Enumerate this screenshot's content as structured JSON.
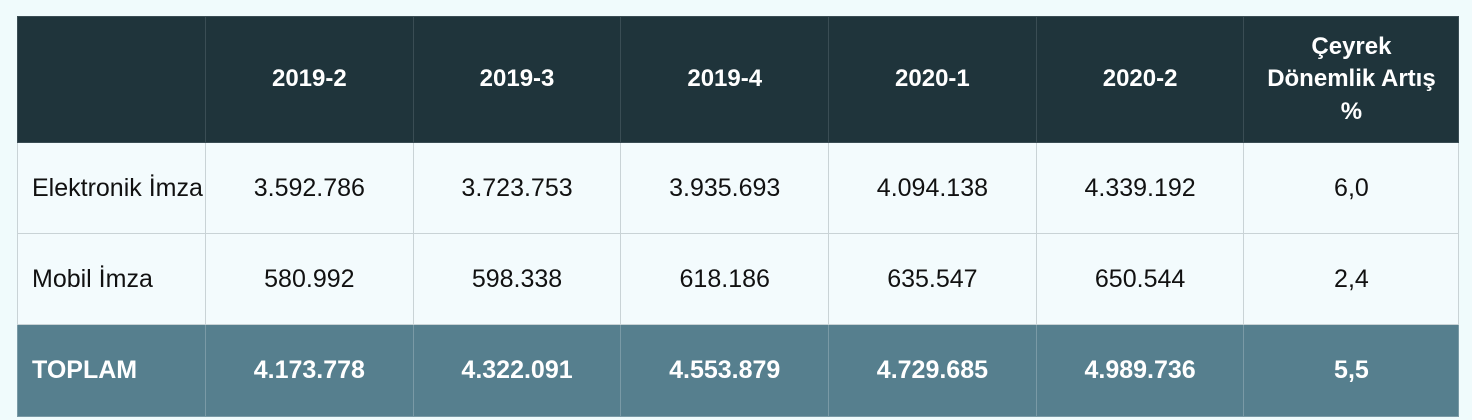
{
  "chart_data": {
    "type": "table",
    "columns": [
      "",
      "2019-2",
      "2019-3",
      "2019-4",
      "2020-1",
      "2020-2",
      "Çeyrek Dönemlik Artış %"
    ],
    "rows": [
      {
        "label": "Elektronik İmza",
        "values": [
          "3.592.786",
          "3.723.753",
          "3.935.693",
          "4.094.138",
          "4.339.192",
          "6,0"
        ]
      },
      {
        "label": "Mobil İmza",
        "values": [
          "580.992",
          "598.338",
          "618.186",
          "635.547",
          "650.544",
          "2,4"
        ]
      }
    ],
    "total": {
      "label": "TOPLAM",
      "values": [
        "4.173.778",
        "4.322.091",
        "4.553.879",
        "4.729.685",
        "4.989.736",
        "5,5"
      ]
    }
  },
  "colors": {
    "header_bg": "#1f343b",
    "body_bg": "#f3fbfd",
    "total_bg": "#567f8e"
  }
}
